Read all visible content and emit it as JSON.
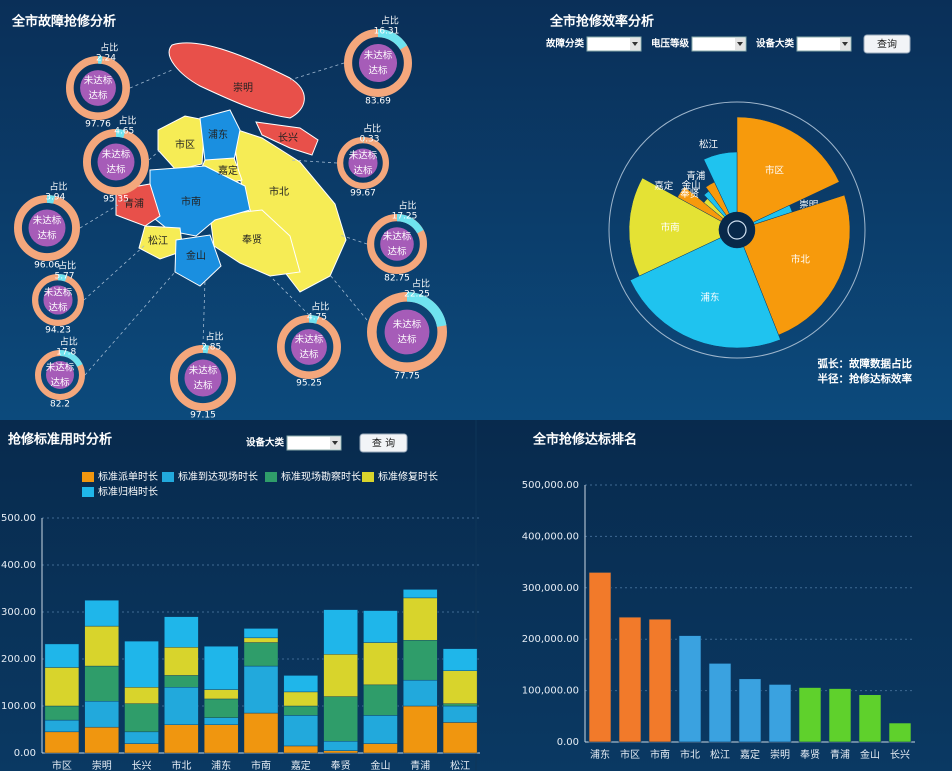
{
  "chart_data": [
    {
      "type": "ring-map",
      "title": "全市故障抢修分析",
      "districts": [
        "崇明",
        "长兴",
        "嘉定",
        "市北",
        "市区",
        "浦东",
        "奉贤",
        "市南",
        "青浦",
        "松江",
        "金山"
      ],
      "ratio_label": "占比",
      "unmet_label": "未达标",
      "met_label": "达标",
      "rings": [
        {
          "ratio": 2.24,
          "rate": 97.76
        },
        {
          "ratio": 4.65,
          "rate": 95.35
        },
        {
          "ratio": 3.94,
          "rate": 96.06
        },
        {
          "ratio": 5.77,
          "rate": 94.23
        },
        {
          "ratio": 17.8,
          "rate": 82.2
        },
        {
          "ratio": 2.85,
          "rate": 97.15
        },
        {
          "ratio": 4.75,
          "rate": 95.25
        },
        {
          "ratio": 22.25,
          "rate": 77.75
        },
        {
          "ratio": 17.25,
          "rate": 82.75
        },
        {
          "ratio": 0.33,
          "rate": 99.67
        },
        {
          "ratio": 16.31,
          "rate": 83.69
        }
      ]
    },
    {
      "type": "rose",
      "title": "全市抢修效率分析",
      "filters": [
        "故障分类",
        "电压等级",
        "设备大类"
      ],
      "button": "查询",
      "categories": [
        "市区",
        "崇明",
        "市北",
        "浦东",
        "市南",
        "嘉定",
        "奉贤",
        "金山",
        "青浦",
        "松江"
      ],
      "values": [
        18,
        2,
        24,
        24,
        15,
        3,
        2,
        2,
        3,
        7
      ],
      "radius_values": [
        95,
        40,
        95,
        100,
        90,
        50,
        25,
        30,
        35,
        60
      ],
      "colors": [
        "#f79a0c",
        "#1fc3ef",
        "#f79a0c",
        "#1fc3ef",
        "#e4e234",
        "#f79a0c",
        "#e4e234",
        "#1fc3ef",
        "#f79a0c",
        "#1fc3ef"
      ],
      "rlim": [
        0,
        100
      ],
      "annotations": [
        "弧长：故障数据占比",
        "半径：抢修达标效率"
      ]
    },
    {
      "type": "stacked-bar",
      "title": "抢修标准用时分析",
      "filters": [
        "设备大类"
      ],
      "button": "查 询",
      "categories": [
        "市区",
        "崇明",
        "长兴",
        "市北",
        "浦东",
        "市南",
        "嘉定",
        "奉贤",
        "金山",
        "青浦",
        "松江"
      ],
      "series": [
        {
          "name": "标准派单时长",
          "color": "#f0960f",
          "values": [
            45,
            55,
            20,
            60,
            60,
            85,
            15,
            5,
            20,
            100,
            65
          ]
        },
        {
          "name": "标准到达现场时长",
          "color": "#22a9dc",
          "values": [
            25,
            55,
            25,
            80,
            15,
            100,
            65,
            20,
            60,
            55,
            35
          ]
        },
        {
          "name": "标准现场勘察时长",
          "color": "#2f9d6a",
          "values": [
            30,
            75,
            60,
            25,
            40,
            50,
            20,
            95,
            65,
            85,
            5
          ]
        },
        {
          "name": "标准修复时长",
          "color": "#d8d42c",
          "values": [
            82,
            85,
            35,
            60,
            20,
            10,
            30,
            90,
            90,
            90,
            70
          ]
        },
        {
          "name": "标准归档时长",
          "color": "#1fb6ea",
          "values": [
            50,
            55,
            98,
            65,
            92,
            20,
            35,
            95,
            68,
            18,
            47
          ]
        }
      ],
      "ylim": [
        0,
        500
      ],
      "yticks": [
        {
          "value": 0,
          "label": "0.00"
        },
        {
          "value": 100,
          "label": "100.00"
        },
        {
          "value": 200,
          "label": "200.00"
        },
        {
          "value": 300,
          "label": "300.00"
        },
        {
          "value": 400,
          "label": "400.00"
        },
        {
          "value": 500,
          "label": "500.00"
        }
      ],
      "grid": true
    },
    {
      "type": "bar",
      "title": "全市抢修达标排名",
      "categories": [
        "浦东",
        "市区",
        "市南",
        "市北",
        "松江",
        "嘉定",
        "崇明",
        "奉贤",
        "青浦",
        "金山",
        "长兴"
      ],
      "values": [
        330000,
        243000,
        239000,
        207000,
        153000,
        123000,
        112000,
        106000,
        104000,
        92000,
        37000
      ],
      "colors": [
        "#f27a2a",
        "#f27a2a",
        "#f27a2a",
        "#3aa2e0",
        "#3aa2e0",
        "#3aa2e0",
        "#3aa2e0",
        "#5fd12c",
        "#5fd12c",
        "#5fd12c",
        "#5fd12c"
      ],
      "ylim": [
        0,
        500000
      ],
      "yticks": [
        {
          "value": 0,
          "label": "0.00"
        },
        {
          "value": 100000,
          "label": "100,000.00"
        },
        {
          "value": 200000,
          "label": "200,000.00"
        },
        {
          "value": 300000,
          "label": "300,000.00"
        },
        {
          "value": 400000,
          "label": "400,000.00"
        },
        {
          "value": 500000,
          "label": "500,000.00"
        }
      ],
      "grid": true
    }
  ]
}
